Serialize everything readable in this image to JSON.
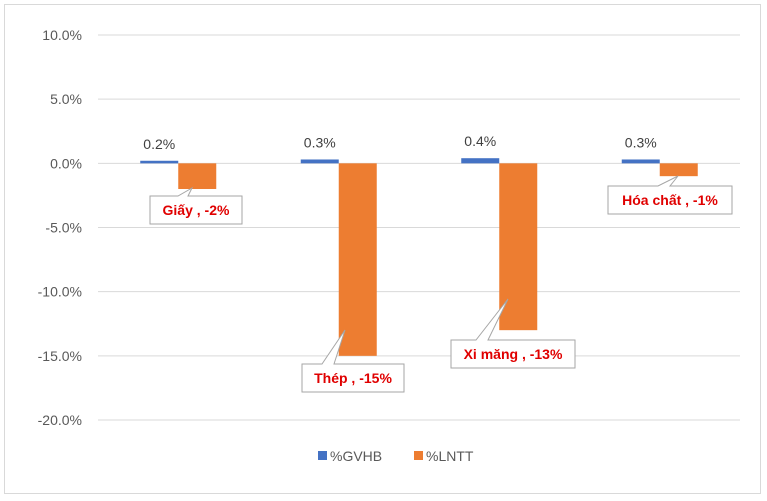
{
  "chart_data": {
    "type": "bar",
    "categories": [
      "Giấy",
      "Thép",
      "Xi măng",
      "Hóa chất"
    ],
    "series": [
      {
        "name": "%GVHB",
        "values": [
          0.2,
          0.3,
          0.4,
          0.3
        ],
        "color": "#4472c4"
      },
      {
        "name": "%LNTT",
        "values": [
          -2,
          -15,
          -13,
          -1
        ],
        "color": "#ed7d31"
      }
    ],
    "data_labels_series0": [
      "0.2%",
      "0.3%",
      "0.4%",
      "0.3%"
    ],
    "callouts": [
      "Giấy , -2%",
      "Thép , -15%",
      "Xi măng , -13%",
      "Hóa chất , -1%"
    ],
    "callout_color": "#e00000",
    "yticks": [
      "10.0%",
      "5.0%",
      "0.0%",
      "-5.0%",
      "-10.0%",
      "-15.0%",
      "-20.0%"
    ],
    "ylim": [
      -20,
      10
    ],
    "grid": true,
    "legend_position": "bottom",
    "title": "",
    "xlabel": "",
    "ylabel": ""
  }
}
